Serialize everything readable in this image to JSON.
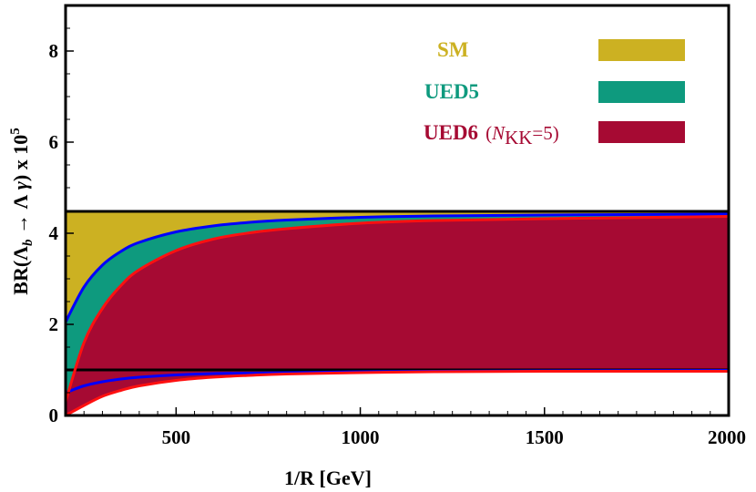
{
  "chart_data": {
    "type": "area",
    "xlabel": "1/R [GeV]",
    "ylabel_parts": {
      "pre": "BR(Λ",
      "sub": "b",
      "mid": " → Λ ",
      "gamma": "γ",
      "post": ") x 10",
      "sup": "5"
    },
    "xlim": [
      200,
      2000
    ],
    "ylim": [
      0,
      9
    ],
    "xticks": [
      500,
      1000,
      1500,
      2000
    ],
    "yticks": [
      0,
      2,
      4,
      6,
      8
    ],
    "grid": false,
    "legend_position": "top-right",
    "legend": [
      {
        "key": "sm",
        "label": "SM",
        "extra": ""
      },
      {
        "key": "ued5",
        "label": "UED5",
        "extra": ""
      },
      {
        "key": "ued6",
        "label": "UED6",
        "extra_parts": {
          "open": "(",
          "N": "N",
          "sub": "KK",
          "close": "=5)"
        }
      }
    ],
    "colors": {
      "sm": "#ccb122",
      "ued5": "#0e9a7e",
      "ued6": "#a60a33",
      "ued5_border": "#0000ff",
      "ued6_border": "#ff1010",
      "sm_border": "#000000"
    },
    "series": [
      {
        "key": "sm",
        "type": "band",
        "x": [
          200,
          2000
        ],
        "upper": [
          4.48,
          4.48
        ],
        "lower": [
          1.0,
          1.0
        ]
      },
      {
        "key": "ued5",
        "type": "band",
        "x": [
          200,
          250,
          300,
          350,
          400,
          500,
          600,
          700,
          800,
          1000,
          1200,
          1500,
          2000
        ],
        "upper": [
          2.05,
          2.82,
          3.3,
          3.6,
          3.8,
          4.03,
          4.16,
          4.24,
          4.29,
          4.35,
          4.38,
          4.4,
          4.42
        ],
        "lower": [
          0.5,
          0.65,
          0.74,
          0.8,
          0.84,
          0.89,
          0.92,
          0.93,
          0.94,
          0.96,
          0.97,
          0.98,
          0.99
        ]
      },
      {
        "key": "ued6",
        "type": "band",
        "x": [
          200,
          250,
          300,
          350,
          400,
          500,
          600,
          700,
          800,
          1000,
          1200,
          1500,
          2000
        ],
        "upper": [
          0.3,
          1.6,
          2.35,
          2.85,
          3.2,
          3.62,
          3.87,
          4.01,
          4.1,
          4.22,
          4.28,
          4.32,
          4.37
        ],
        "lower": [
          0.0,
          0.22,
          0.42,
          0.55,
          0.65,
          0.77,
          0.84,
          0.88,
          0.91,
          0.94,
          0.96,
          0.97,
          0.97
        ]
      }
    ]
  }
}
